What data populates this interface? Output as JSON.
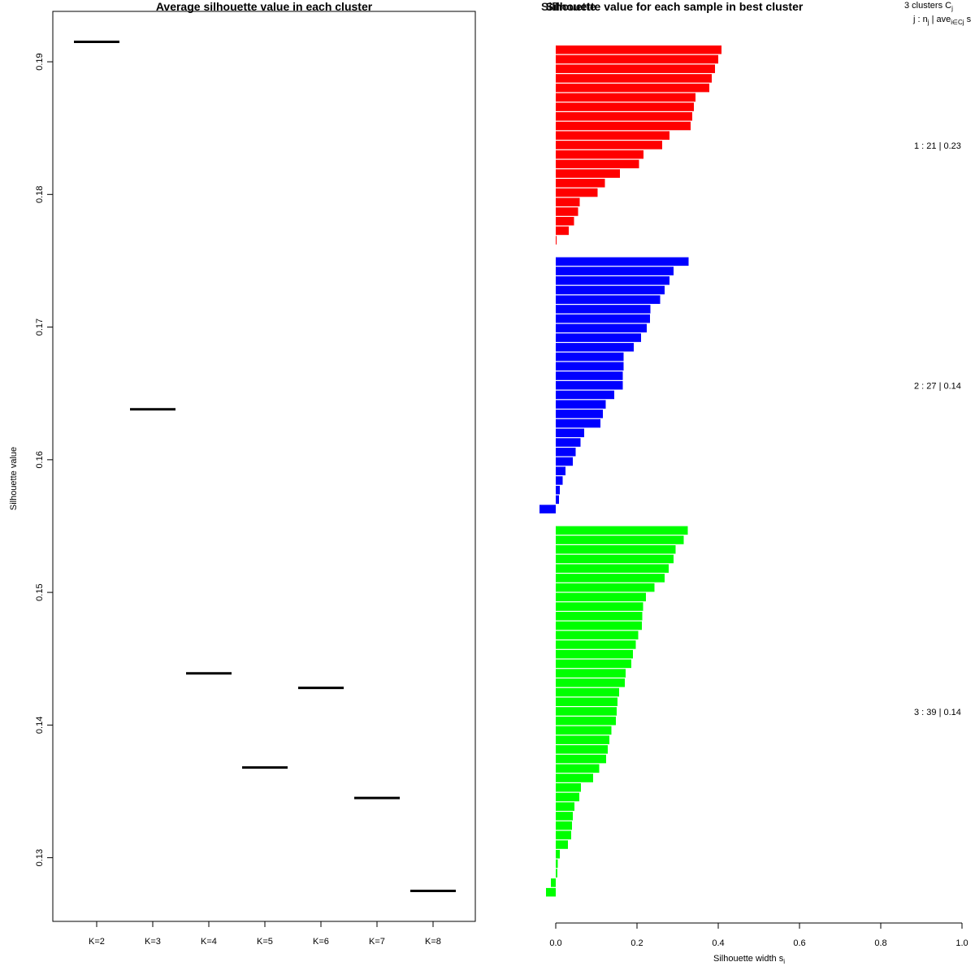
{
  "chart_data": [
    {
      "type": "scatter",
      "title": "Average silhouette value in each cluster",
      "xlabel": "",
      "ylabel": "Silhouette value",
      "categories": [
        "K=2",
        "K=3",
        "K=4",
        "K=5",
        "K=6",
        "K=7",
        "K=8"
      ],
      "values": [
        0.1915,
        0.1638,
        0.1439,
        0.1368,
        0.1428,
        0.1345,
        0.1275
      ],
      "ylim": [
        0.1252,
        0.1938
      ],
      "yticks": [
        "0.13",
        "0.14",
        "0.15",
        "0.16",
        "0.17",
        "0.18",
        "0.19"
      ],
      "marker": "horizontal-segment",
      "color": "#000000"
    },
    {
      "type": "bar",
      "orientation": "horizontal",
      "title": "Silhouette value for each sample in best cluster",
      "title_overlay": "Silhouette",
      "xlabel": "Silhouette width s",
      "xlabel_subscript": "i",
      "xlim": [
        0,
        1
      ],
      "xticks": [
        "0.0",
        "0.2",
        "0.4",
        "0.6",
        "0.8",
        "1.0"
      ],
      "header_line1": "3  clusters  C",
      "header_line1_sub": "j",
      "header_line2": "j :  n",
      "header_line2_sub": "j",
      "header_line2_rest": " | ave",
      "header_line2_sub2": "i∈Cj",
      "header_line2_tail": "  s",
      "clusters": [
        {
          "label": "1 :  21  |  0.23",
          "color": "#ff0000",
          "values": [
            0.408,
            0.4,
            0.392,
            0.384,
            0.378,
            0.344,
            0.34,
            0.336,
            0.332,
            0.28,
            0.262,
            0.216,
            0.205,
            0.158,
            0.121,
            0.103,
            0.059,
            0.055,
            0.045,
            0.032,
            0.002
          ]
        },
        {
          "label": "2 :  27  |  0.14",
          "color": "#0000ff",
          "values": [
            0.327,
            0.29,
            0.28,
            0.268,
            0.257,
            0.233,
            0.232,
            0.224,
            0.21,
            0.192,
            0.167,
            0.167,
            0.165,
            0.165,
            0.144,
            0.123,
            0.116,
            0.11,
            0.07,
            0.061,
            0.049,
            0.042,
            0.024,
            0.017,
            0.01,
            0.008,
            -0.04
          ]
        },
        {
          "label": "3 :  39  |  0.14",
          "color": "#00ff00",
          "values": [
            0.325,
            0.315,
            0.295,
            0.29,
            0.278,
            0.268,
            0.243,
            0.222,
            0.215,
            0.213,
            0.212,
            0.203,
            0.197,
            0.19,
            0.186,
            0.172,
            0.17,
            0.156,
            0.152,
            0.15,
            0.148,
            0.137,
            0.132,
            0.128,
            0.124,
            0.107,
            0.092,
            0.062,
            0.058,
            0.046,
            0.042,
            0.04,
            0.038,
            0.03,
            0.01,
            0.005,
            0.004,
            -0.012,
            -0.024
          ]
        }
      ]
    }
  ]
}
